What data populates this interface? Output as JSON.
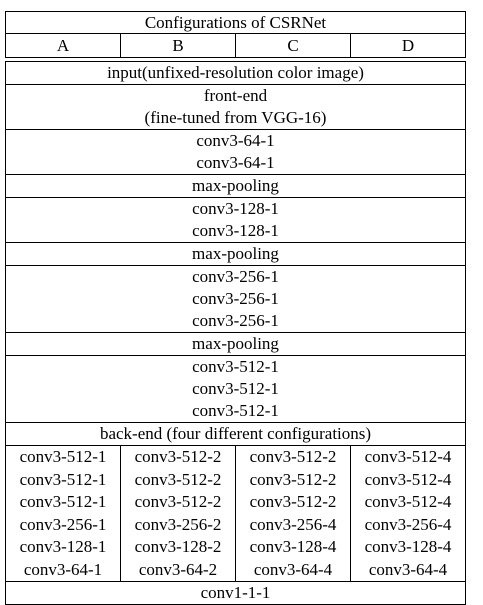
{
  "table": {
    "title": "Configurations of CSRNet",
    "columns": [
      "A",
      "B",
      "C",
      "D"
    ],
    "input": "input(unfixed-resolution color image)",
    "frontend": {
      "title": "front-end",
      "subtitle": "(fine-tuned from VGG-16)",
      "blocks": [
        [
          "conv3-64-1",
          "conv3-64-1"
        ],
        [
          "max-pooling"
        ],
        [
          "conv3-128-1",
          "conv3-128-1"
        ],
        [
          "max-pooling"
        ],
        [
          "conv3-256-1",
          "conv3-256-1",
          "conv3-256-1"
        ],
        [
          "max-pooling"
        ],
        [
          "conv3-512-1",
          "conv3-512-1",
          "conv3-512-1"
        ]
      ]
    },
    "backend": {
      "title": "back-end (four different configurations)",
      "configs": [
        [
          "conv3-512-1",
          "conv3-512-1",
          "conv3-512-1",
          "conv3-256-1",
          "conv3-128-1",
          "conv3-64-1"
        ],
        [
          "conv3-512-2",
          "conv3-512-2",
          "conv3-512-2",
          "conv3-256-2",
          "conv3-128-2",
          "conv3-64-2"
        ],
        [
          "conv3-512-2",
          "conv3-512-2",
          "conv3-512-2",
          "conv3-256-4",
          "conv3-128-4",
          "conv3-64-4"
        ],
        [
          "conv3-512-4",
          "conv3-512-4",
          "conv3-512-4",
          "conv3-256-4",
          "conv3-128-4",
          "conv3-64-4"
        ]
      ]
    },
    "output": "conv1-1-1"
  }
}
